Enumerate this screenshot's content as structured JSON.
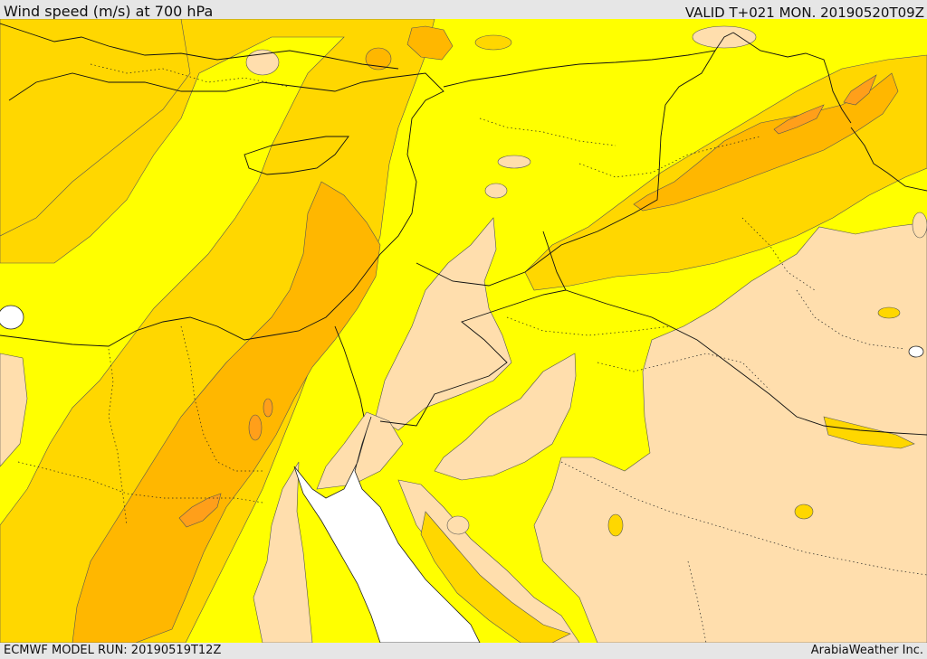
{
  "header": {
    "title": "Wind speed (m/s) at 700 hPa",
    "valid": "VALID T+021 MON. 20190520T09Z"
  },
  "footer": {
    "model_run": "ECMWF MODEL RUN: 20190519T12Z",
    "credit": "ArabiaWeather Inc."
  },
  "map": {
    "field": "wind speed",
    "level": "700 hPa",
    "colors": {
      "light_tan": "#ffdead",
      "yellow": "#ffff00",
      "gold": "#ffd700",
      "amber": "#ffb700",
      "orange": "#ff9f1a",
      "sea": "#ffffff"
    }
  }
}
